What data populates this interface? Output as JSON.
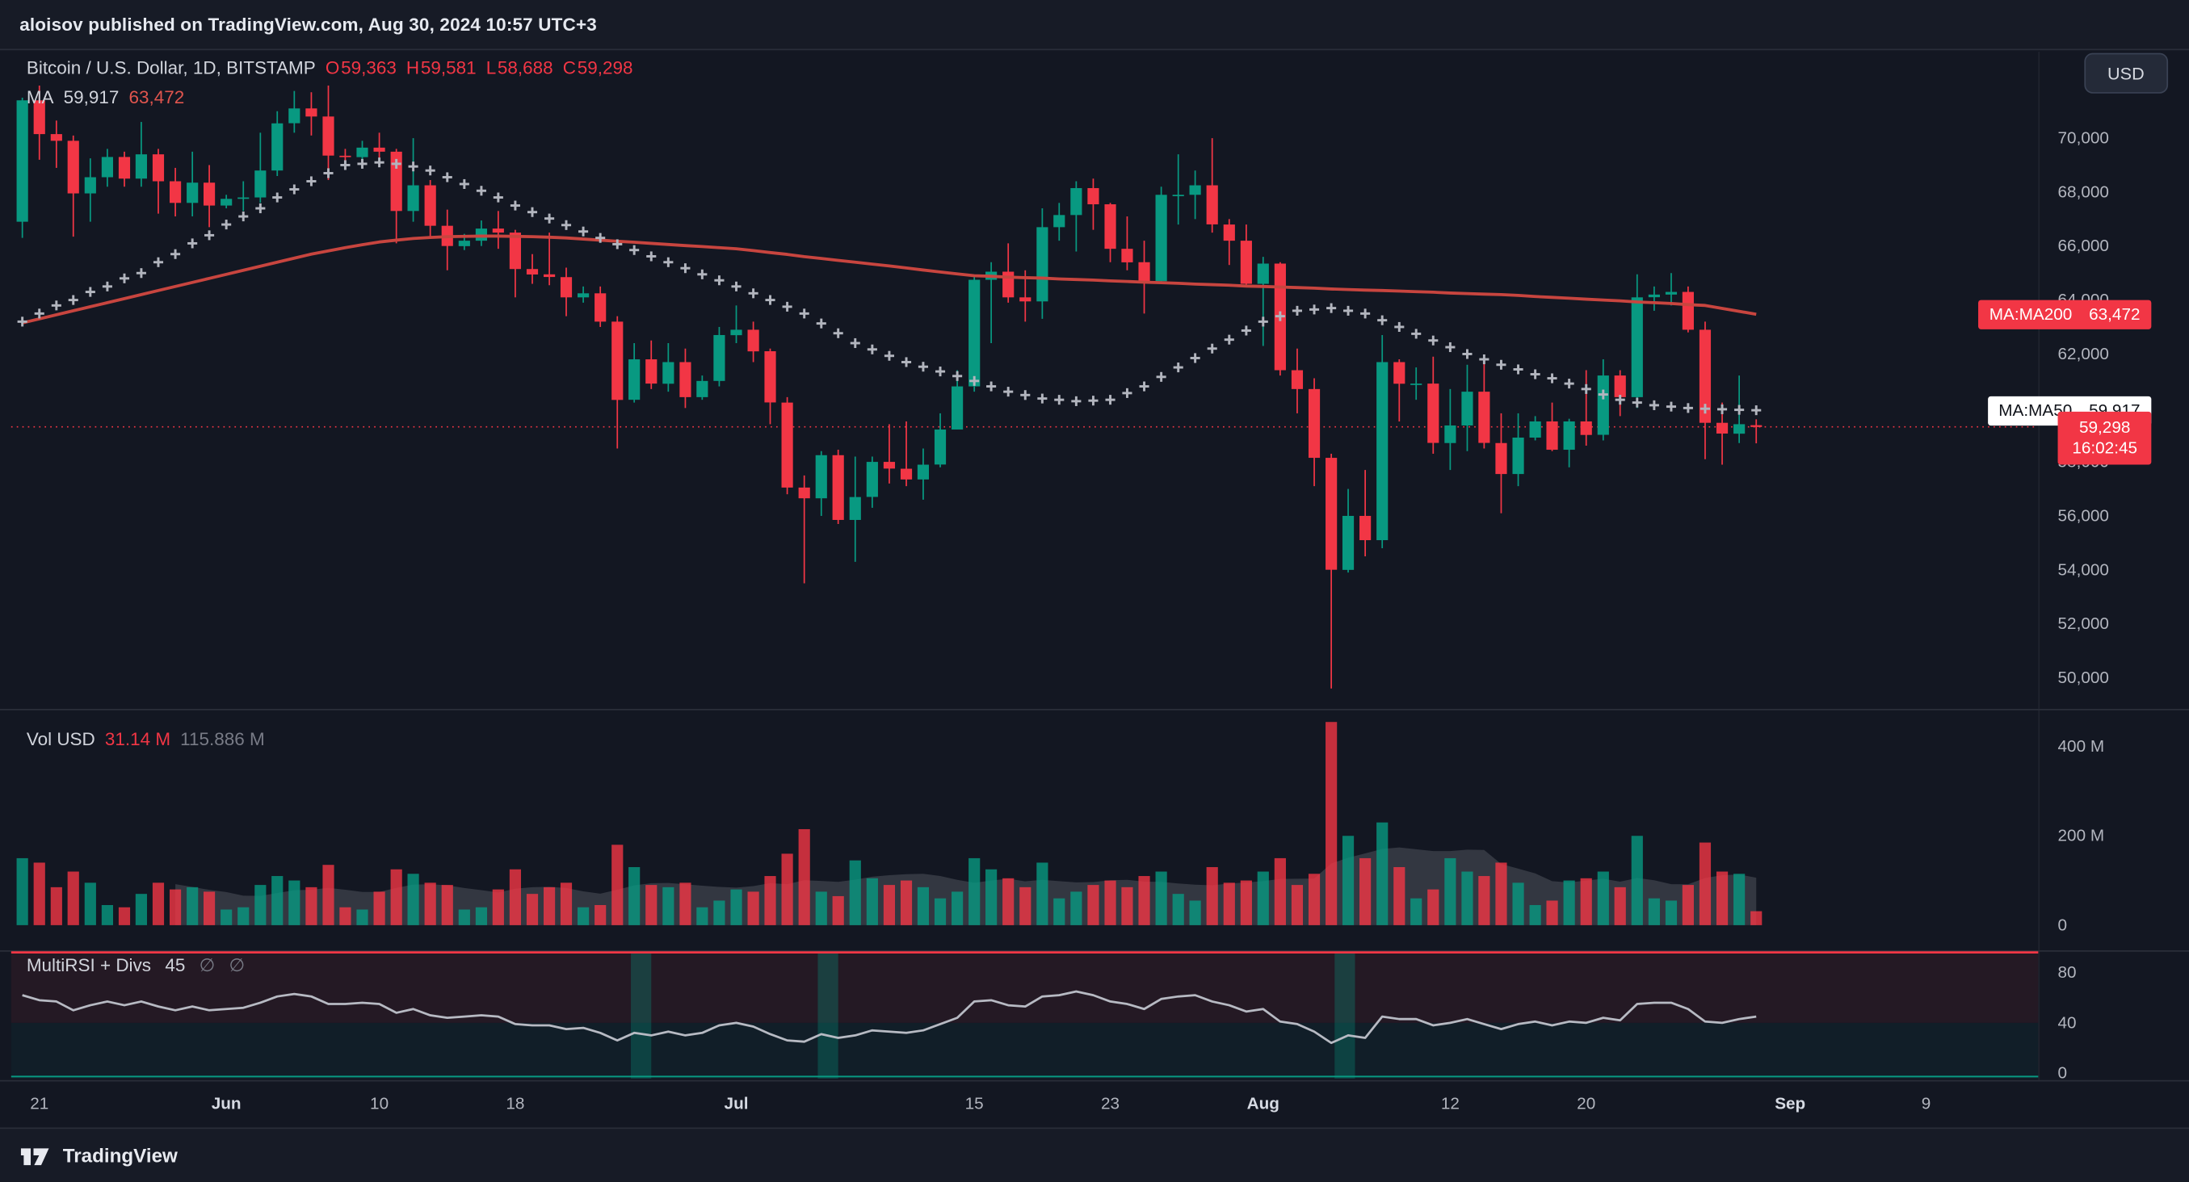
{
  "page": {
    "top_bar": "aloisov published on TradingView.com, Aug 30, 2024 10:57 UTC+3",
    "bottom_bar": {
      "brand": "TradingView"
    }
  },
  "header": {
    "symbol_title": "Bitcoin / U.S. Dollar, 1D, BITSTAMP",
    "ohlc": {
      "o_label": "O",
      "o": "59,363",
      "h_label": "H",
      "h": "59,581",
      "l_label": "L",
      "l": "58,688",
      "c_label": "C",
      "c": "59,298"
    },
    "ma_legend": {
      "label": "MA",
      "ma50": "59,917",
      "ma200": "63,472"
    },
    "currency_button": "USD"
  },
  "volume_legend": {
    "label": "Vol USD",
    "value": "31.14 M",
    "ma_value": "115.886 M"
  },
  "rsi_legend": {
    "label": "MultiRSI + Divs",
    "value": "45",
    "flag1": "∅",
    "flag2": "∅"
  },
  "badges": {
    "ma200_label": "MA:MA200",
    "ma200_value": "63,472",
    "ma50_label": "MA:MA50",
    "ma50_value": "59,917",
    "price": "59,298",
    "countdown": "16:02:45"
  },
  "colors": {
    "up": "#089981",
    "down": "#f23645",
    "ma200_line": "#c8453f",
    "ma50_cross": "#b2b5be",
    "rsi_line": "#b7bac3",
    "bg": "#131722",
    "panel": "#171b26",
    "border": "#2a2e39",
    "text": "#d1d4dc",
    "muted": "#787b86",
    "scale_text": "#b2b5be"
  },
  "chart_data": {
    "type": "candlestick",
    "title": "Bitcoin / U.S. Dollar, 1D, BITSTAMP",
    "symbol": "BTCUSD",
    "exchange": "BITSTAMP",
    "interval": "1D",
    "last_price": 59298,
    "ma50_last": 59917,
    "ma200_last": 63472,
    "rsi_last": 45,
    "volume_last_musd": 31.14,
    "volume_ma_musd": 115.886,
    "price_axis": {
      "min": 48900,
      "max": 73300,
      "ticks": [
        70000,
        68000,
        66000,
        64000,
        62000,
        60000,
        58000,
        56000,
        54000,
        52000,
        50000
      ]
    },
    "volume_axis": {
      "ticks": [
        {
          "value": 400,
          "label": "400 M"
        },
        {
          "value": 200,
          "label": "200 M"
        },
        {
          "value": 0,
          "label": "0"
        }
      ]
    },
    "rsi_axis": {
      "ticks": [
        80,
        40,
        0
      ]
    },
    "time_ticks": [
      {
        "i": 1,
        "label": "21",
        "major": false
      },
      {
        "i": 12,
        "label": "Jun",
        "major": true
      },
      {
        "i": 21,
        "label": "10",
        "major": false
      },
      {
        "i": 29,
        "label": "18",
        "major": false
      },
      {
        "i": 42,
        "label": "Jul",
        "major": true
      },
      {
        "i": 56,
        "label": "15",
        "major": false
      },
      {
        "i": 64,
        "label": "23",
        "major": false
      },
      {
        "i": 73,
        "label": "Aug",
        "major": true
      },
      {
        "i": 84,
        "label": "12",
        "major": false
      },
      {
        "i": 92,
        "label": "20",
        "major": false
      },
      {
        "i": 104,
        "label": "Sep",
        "major": true
      },
      {
        "i": 112,
        "label": "9",
        "major": false
      }
    ],
    "rsi_bands": [
      [
        35.8,
        37.0
      ],
      [
        46.8,
        48.0
      ],
      [
        77.2,
        78.4
      ]
    ],
    "candle_fields": [
      "date",
      "open",
      "high",
      "low",
      "close",
      "volume_musd"
    ],
    "candles": [
      [
        "05-20",
        66900,
        71500,
        66300,
        71400,
        150
      ],
      [
        "05-21",
        71400,
        71950,
        69200,
        70150,
        140
      ],
      [
        "05-22",
        70150,
        70650,
        68900,
        69900,
        85
      ],
      [
        "05-23",
        69900,
        70100,
        66350,
        67950,
        120
      ],
      [
        "05-24",
        67950,
        69250,
        66900,
        68550,
        95
      ],
      [
        "05-25",
        68550,
        69600,
        68200,
        69300,
        45
      ],
      [
        "05-26",
        69300,
        69500,
        68200,
        68500,
        40
      ],
      [
        "05-27",
        68500,
        70600,
        68200,
        69400,
        70
      ],
      [
        "05-28",
        69400,
        69600,
        67200,
        68400,
        95
      ],
      [
        "05-29",
        68400,
        68900,
        67100,
        67600,
        80
      ],
      [
        "05-30",
        67600,
        69500,
        67100,
        68350,
        85
      ],
      [
        "05-31",
        68350,
        69000,
        66700,
        67500,
        75
      ],
      [
        "06-01",
        67500,
        67900,
        67400,
        67750,
        35
      ],
      [
        "06-02",
        67750,
        68400,
        67300,
        67800,
        40
      ],
      [
        "06-03",
        67800,
        70200,
        67600,
        68800,
        90
      ],
      [
        "06-04",
        68800,
        71000,
        68600,
        70550,
        110
      ],
      [
        "06-05",
        70550,
        71750,
        70200,
        71100,
        100
      ],
      [
        "06-06",
        71100,
        71700,
        70100,
        70800,
        85
      ],
      [
        "06-07",
        70800,
        71950,
        68450,
        69350,
        135
      ],
      [
        "06-08",
        69350,
        69600,
        69100,
        69300,
        40
      ],
      [
        "06-09",
        69300,
        69900,
        69100,
        69650,
        35
      ],
      [
        "06-10",
        69650,
        70200,
        69200,
        69500,
        75
      ],
      [
        "06-11",
        69500,
        69600,
        66100,
        67300,
        125
      ],
      [
        "06-12",
        67300,
        70000,
        66900,
        68250,
        115
      ],
      [
        "06-13",
        68250,
        68450,
        66300,
        66750,
        95
      ],
      [
        "06-14",
        66750,
        67350,
        65100,
        66000,
        90
      ],
      [
        "06-15",
        66000,
        66450,
        65850,
        66200,
        35
      ],
      [
        "06-16",
        66200,
        66950,
        66000,
        66650,
        40
      ],
      [
        "06-17",
        66650,
        67300,
        65900,
        66500,
        80
      ],
      [
        "06-18",
        66500,
        66600,
        64100,
        65150,
        125
      ],
      [
        "06-19",
        65150,
        65700,
        64600,
        64950,
        70
      ],
      [
        "06-20",
        64950,
        66500,
        64550,
        64850,
        85
      ],
      [
        "06-21",
        64850,
        65200,
        63400,
        64100,
        95
      ],
      [
        "06-22",
        64100,
        64500,
        63900,
        64250,
        40
      ],
      [
        "06-23",
        64250,
        64500,
        63000,
        63200,
        45
      ],
      [
        "06-24",
        63200,
        63400,
        58500,
        60300,
        180
      ],
      [
        "06-25",
        60300,
        62400,
        60200,
        61800,
        130
      ],
      [
        "06-26",
        61800,
        62500,
        60700,
        60900,
        90
      ],
      [
        "06-27",
        60900,
        62400,
        60600,
        61700,
        85
      ],
      [
        "06-28",
        61700,
        62200,
        60000,
        60400,
        95
      ],
      [
        "06-29",
        60400,
        61200,
        60300,
        61000,
        40
      ],
      [
        "06-30",
        61000,
        63000,
        60800,
        62700,
        55
      ],
      [
        "07-01",
        62700,
        63800,
        62400,
        62900,
        80
      ],
      [
        "07-02",
        62900,
        63200,
        61700,
        62100,
        75
      ],
      [
        "07-03",
        62100,
        62200,
        59400,
        60200,
        110
      ],
      [
        "07-04",
        60200,
        60400,
        56800,
        57050,
        160
      ],
      [
        "07-05",
        57050,
        57500,
        53500,
        56650,
        215
      ],
      [
        "07-06",
        56650,
        58400,
        56000,
        58250,
        75
      ],
      [
        "07-07",
        58250,
        58450,
        55700,
        55850,
        65
      ],
      [
        "07-08",
        55850,
        58200,
        54300,
        56700,
        145
      ],
      [
        "07-09",
        56700,
        58200,
        56300,
        58000,
        105
      ],
      [
        "07-10",
        58000,
        59400,
        57200,
        57750,
        90
      ],
      [
        "07-11",
        57750,
        59500,
        57100,
        57350,
        100
      ],
      [
        "07-12",
        57350,
        58500,
        56600,
        57900,
        85
      ],
      [
        "07-13",
        57900,
        59800,
        57800,
        59200,
        60
      ],
      [
        "07-14",
        59200,
        61400,
        59200,
        60800,
        75
      ],
      [
        "07-15",
        60800,
        64900,
        60600,
        64750,
        150
      ],
      [
        "07-16",
        64750,
        65400,
        62400,
        65050,
        125
      ],
      [
        "07-17",
        65050,
        66100,
        63900,
        64100,
        105
      ],
      [
        "07-18",
        64100,
        65100,
        63200,
        63950,
        85
      ],
      [
        "07-19",
        63950,
        67400,
        63300,
        66700,
        140
      ],
      [
        "07-20",
        66700,
        67600,
        66200,
        67150,
        60
      ],
      [
        "07-21",
        67150,
        68400,
        65800,
        68150,
        75
      ],
      [
        "07-22",
        68150,
        68500,
        66600,
        67550,
        90
      ],
      [
        "07-23",
        67550,
        67600,
        65400,
        65900,
        100
      ],
      [
        "07-24",
        65900,
        67100,
        65100,
        65400,
        85
      ],
      [
        "07-25",
        65400,
        66200,
        63500,
        64700,
        110
      ],
      [
        "07-26",
        64700,
        68200,
        64600,
        67900,
        120
      ],
      [
        "07-27",
        67900,
        69400,
        66800,
        67900,
        70
      ],
      [
        "07-28",
        67900,
        68800,
        67000,
        68250,
        55
      ],
      [
        "07-29",
        68250,
        70000,
        66500,
        66800,
        130
      ],
      [
        "07-30",
        66800,
        67000,
        65300,
        66200,
        95
      ],
      [
        "07-31",
        66200,
        66800,
        64500,
        64600,
        100
      ],
      [
        "08-01",
        64600,
        65600,
        62300,
        65350,
        120
      ],
      [
        "08-02",
        65350,
        65400,
        61200,
        61400,
        150
      ],
      [
        "08-03",
        61400,
        62200,
        59800,
        60700,
        90
      ],
      [
        "08-04",
        60700,
        61100,
        57100,
        58150,
        115
      ],
      [
        "08-05",
        58150,
        58300,
        49600,
        54000,
        455
      ],
      [
        "08-06",
        54000,
        57000,
        53900,
        56000,
        200
      ],
      [
        "08-07",
        56000,
        57700,
        54500,
        55100,
        150
      ],
      [
        "08-08",
        55100,
        62700,
        54800,
        61700,
        230
      ],
      [
        "08-09",
        61700,
        61800,
        59500,
        60900,
        130
      ],
      [
        "08-10",
        60900,
        61500,
        60300,
        60900,
        60
      ],
      [
        "08-11",
        60900,
        61900,
        58300,
        58700,
        80
      ],
      [
        "08-12",
        58700,
        60700,
        57700,
        59350,
        150
      ],
      [
        "08-13",
        59350,
        61600,
        58400,
        60600,
        120
      ],
      [
        "08-14",
        60600,
        61800,
        58500,
        58700,
        110
      ],
      [
        "08-15",
        58700,
        59800,
        56100,
        57550,
        140
      ],
      [
        "08-16",
        57550,
        59800,
        57100,
        58900,
        95
      ],
      [
        "08-17",
        58900,
        59700,
        58800,
        59500,
        45
      ],
      [
        "08-18",
        59500,
        60200,
        58400,
        58450,
        55
      ],
      [
        "08-19",
        58450,
        59600,
        57800,
        59500,
        100
      ],
      [
        "08-20",
        59500,
        61400,
        58600,
        59000,
        105
      ],
      [
        "08-21",
        59000,
        61800,
        58800,
        61200,
        120
      ],
      [
        "08-22",
        61200,
        61400,
        59700,
        60400,
        85
      ],
      [
        "08-23",
        60400,
        64950,
        60000,
        64100,
        200
      ],
      [
        "08-24",
        64100,
        64500,
        63600,
        64200,
        60
      ],
      [
        "08-25",
        64200,
        65000,
        63800,
        64300,
        55
      ],
      [
        "08-26",
        64300,
        64500,
        62800,
        62900,
        90
      ],
      [
        "08-27",
        62900,
        63200,
        58100,
        59450,
        185
      ],
      [
        "08-28",
        59450,
        60200,
        57900,
        59050,
        120
      ],
      [
        "08-29",
        59050,
        61200,
        58700,
        59400,
        115
      ],
      [
        "08-30",
        59363,
        59581,
        58688,
        59298,
        31.14
      ]
    ],
    "ma50": [
      63200,
      63500,
      63800,
      64000,
      64300,
      64500,
      64800,
      65000,
      65400,
      65700,
      66100,
      66400,
      66800,
      67100,
      67400,
      67800,
      68100,
      68400,
      68700,
      69000,
      69050,
      69100,
      69050,
      68950,
      68800,
      68550,
      68300,
      68050,
      67800,
      67500,
      67260,
      67020,
      66780,
      66540,
      66300,
      66070,
      65850,
      65620,
      65400,
      65180,
      64950,
      64730,
      64500,
      64250,
      64000,
      63750,
      63500,
      63130,
      62770,
      62400,
      62170,
      61930,
      61700,
      61530,
      61350,
      61180,
      61000,
      60800,
      60600,
      60480,
      60350,
      60300,
      60250,
      60270,
      60300,
      60550,
      60800,
      61150,
      61500,
      61850,
      62200,
      62530,
      62870,
      63200,
      63400,
      63600,
      63650,
      63700,
      63600,
      63500,
      63250,
      63000,
      62750,
      62500,
      62250,
      62000,
      61800,
      61600,
      61430,
      61250,
      61100,
      60900,
      60700,
      60500,
      60300,
      60200,
      60100,
      60050,
      60000,
      59970,
      59950,
      59930,
      59917
    ],
    "ma200": [
      63150,
      63300,
      63450,
      63600,
      63750,
      63900,
      64050,
      64200,
      64350,
      64500,
      64650,
      64800,
      64950,
      65100,
      65250,
      65400,
      65550,
      65700,
      65820,
      65940,
      66050,
      66150,
      66220,
      66280,
      66320,
      66350,
      66360,
      66370,
      66370,
      66360,
      66350,
      66330,
      66300,
      66260,
      66220,
      66180,
      66140,
      66100,
      66060,
      66020,
      65980,
      65940,
      65900,
      65830,
      65760,
      65690,
      65610,
      65540,
      65470,
      65400,
      65330,
      65260,
      65190,
      65110,
      65040,
      64970,
      64900,
      64880,
      64850,
      64830,
      64810,
      64780,
      64760,
      64740,
      64710,
      64690,
      64660,
      64640,
      64620,
      64590,
      64570,
      64550,
      64520,
      64500,
      64480,
      64460,
      64440,
      64410,
      64390,
      64370,
      64350,
      64330,
      64310,
      64290,
      64260,
      64240,
      64220,
      64200,
      64170,
      64130,
      64100,
      64070,
      64030,
      64000,
      63970,
      63930,
      63900,
      63870,
      63830,
      63800,
      63690,
      63580,
      63472
    ],
    "rsi": [
      62,
      58,
      57,
      50,
      54,
      57,
      54,
      57,
      53,
      50,
      53,
      50,
      51,
      52,
      56,
      61,
      63,
      61,
      55,
      55,
      56,
      55,
      48,
      51,
      46,
      44,
      45,
      46,
      45,
      39,
      38,
      38,
      35,
      36,
      32,
      26,
      32,
      30,
      33,
      30,
      32,
      38,
      40,
      37,
      31,
      26,
      25,
      31,
      28,
      30,
      34,
      33,
      32,
      34,
      39,
      44,
      57,
      58,
      54,
      53,
      61,
      62,
      65,
      62,
      57,
      55,
      51,
      59,
      61,
      62,
      57,
      54,
      49,
      51,
      41,
      39,
      33,
      24,
      30,
      28,
      45,
      43,
      43,
      38,
      40,
      43,
      39,
      35,
      39,
      41,
      38,
      41,
      40,
      44,
      42,
      55,
      56,
      56,
      51,
      41,
      40,
      43,
      45
    ]
  }
}
